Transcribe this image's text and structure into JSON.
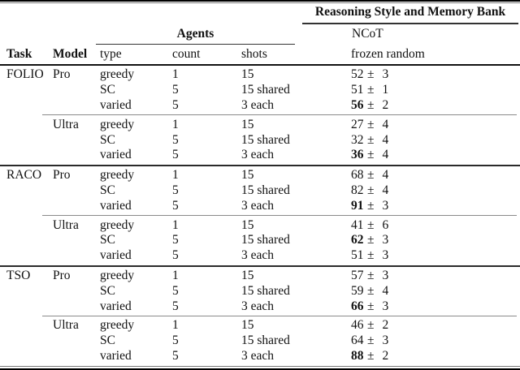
{
  "table": {
    "pm": "±",
    "header": {
      "group_right": "Reasoning Style and Memory Bank",
      "group_agents": "Agents",
      "subgroup_right": "NCoT",
      "col_task": "Task",
      "col_model": "Model",
      "col_type": "type",
      "col_count": "count",
      "col_shots": "shots",
      "col_value": "frozen random"
    },
    "sections": [
      {
        "task": "FOLIO",
        "groups": [
          {
            "model": "Pro",
            "rows": [
              {
                "type": "greedy",
                "count": "1",
                "shots": "15",
                "score": "52",
                "err": "3",
                "bold": false
              },
              {
                "type": "SC",
                "count": "5",
                "shots": "15 shared",
                "score": "51",
                "err": "1",
                "bold": false
              },
              {
                "type": "varied",
                "count": "5",
                "shots": "3 each",
                "score": "56",
                "err": "2",
                "bold": true
              }
            ]
          },
          {
            "model": "Ultra",
            "rows": [
              {
                "type": "greedy",
                "count": "1",
                "shots": "15",
                "score": "27",
                "err": "4",
                "bold": false
              },
              {
                "type": "SC",
                "count": "5",
                "shots": "15 shared",
                "score": "32",
                "err": "4",
                "bold": false
              },
              {
                "type": "varied",
                "count": "5",
                "shots": "3 each",
                "score": "36",
                "err": "4",
                "bold": true
              }
            ]
          }
        ]
      },
      {
        "task": "RACO",
        "groups": [
          {
            "model": "Pro",
            "rows": [
              {
                "type": "greedy",
                "count": "1",
                "shots": "15",
                "score": "68",
                "err": "4",
                "bold": false
              },
              {
                "type": "SC",
                "count": "5",
                "shots": "15 shared",
                "score": "82",
                "err": "4",
                "bold": false
              },
              {
                "type": "varied",
                "count": "5",
                "shots": "3 each",
                "score": "91",
                "err": "3",
                "bold": true
              }
            ]
          },
          {
            "model": "Ultra",
            "rows": [
              {
                "type": "greedy",
                "count": "1",
                "shots": "15",
                "score": "41",
                "err": "6",
                "bold": false
              },
              {
                "type": "SC",
                "count": "5",
                "shots": "15 shared",
                "score": "62",
                "err": "3",
                "bold": true
              },
              {
                "type": "varied",
                "count": "5",
                "shots": "3 each",
                "score": "51",
                "err": "3",
                "bold": false
              }
            ]
          }
        ]
      },
      {
        "task": "TSO",
        "groups": [
          {
            "model": "Pro",
            "rows": [
              {
                "type": "greedy",
                "count": "1",
                "shots": "15",
                "score": "57",
                "err": "3",
                "bold": false
              },
              {
                "type": "SC",
                "count": "5",
                "shots": "15 shared",
                "score": "59",
                "err": "4",
                "bold": false
              },
              {
                "type": "varied",
                "count": "5",
                "shots": "3 each",
                "score": "66",
                "err": "3",
                "bold": true
              }
            ]
          },
          {
            "model": "Ultra",
            "rows": [
              {
                "type": "greedy",
                "count": "1",
                "shots": "15",
                "score": "46",
                "err": "2",
                "bold": false
              },
              {
                "type": "SC",
                "count": "5",
                "shots": "15 shared",
                "score": "64",
                "err": "3",
                "bold": false
              },
              {
                "type": "varied",
                "count": "5",
                "shots": "3 each",
                "score": "88",
                "err": "2",
                "bold": true
              }
            ]
          }
        ]
      }
    ]
  }
}
